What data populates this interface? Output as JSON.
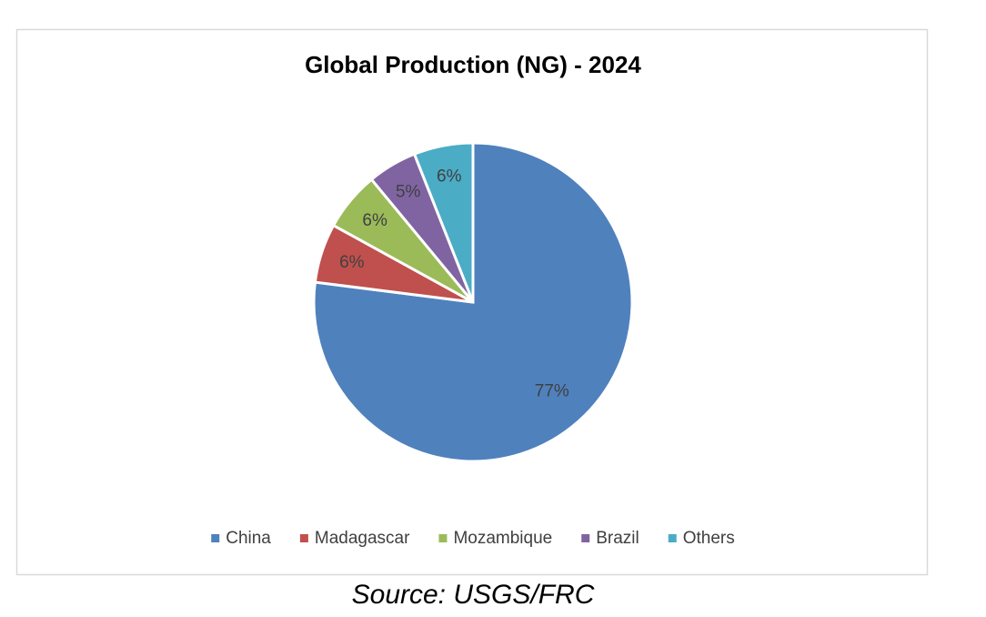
{
  "chart_data": {
    "type": "pie",
    "title": "Global Production (NG) - 2024",
    "categories": [
      "China",
      "Madagascar",
      "Mozambique",
      "Brazil",
      "Others"
    ],
    "values": [
      77,
      6,
      6,
      5,
      6
    ],
    "value_labels": [
      "77%",
      "6%",
      "6%",
      "5%",
      "6%"
    ],
    "colors": [
      "#4f81bd",
      "#c0504d",
      "#9bbb59",
      "#8064a2",
      "#4bacc6"
    ],
    "legend": "bottom",
    "source": "Source: USGS/FRC"
  }
}
